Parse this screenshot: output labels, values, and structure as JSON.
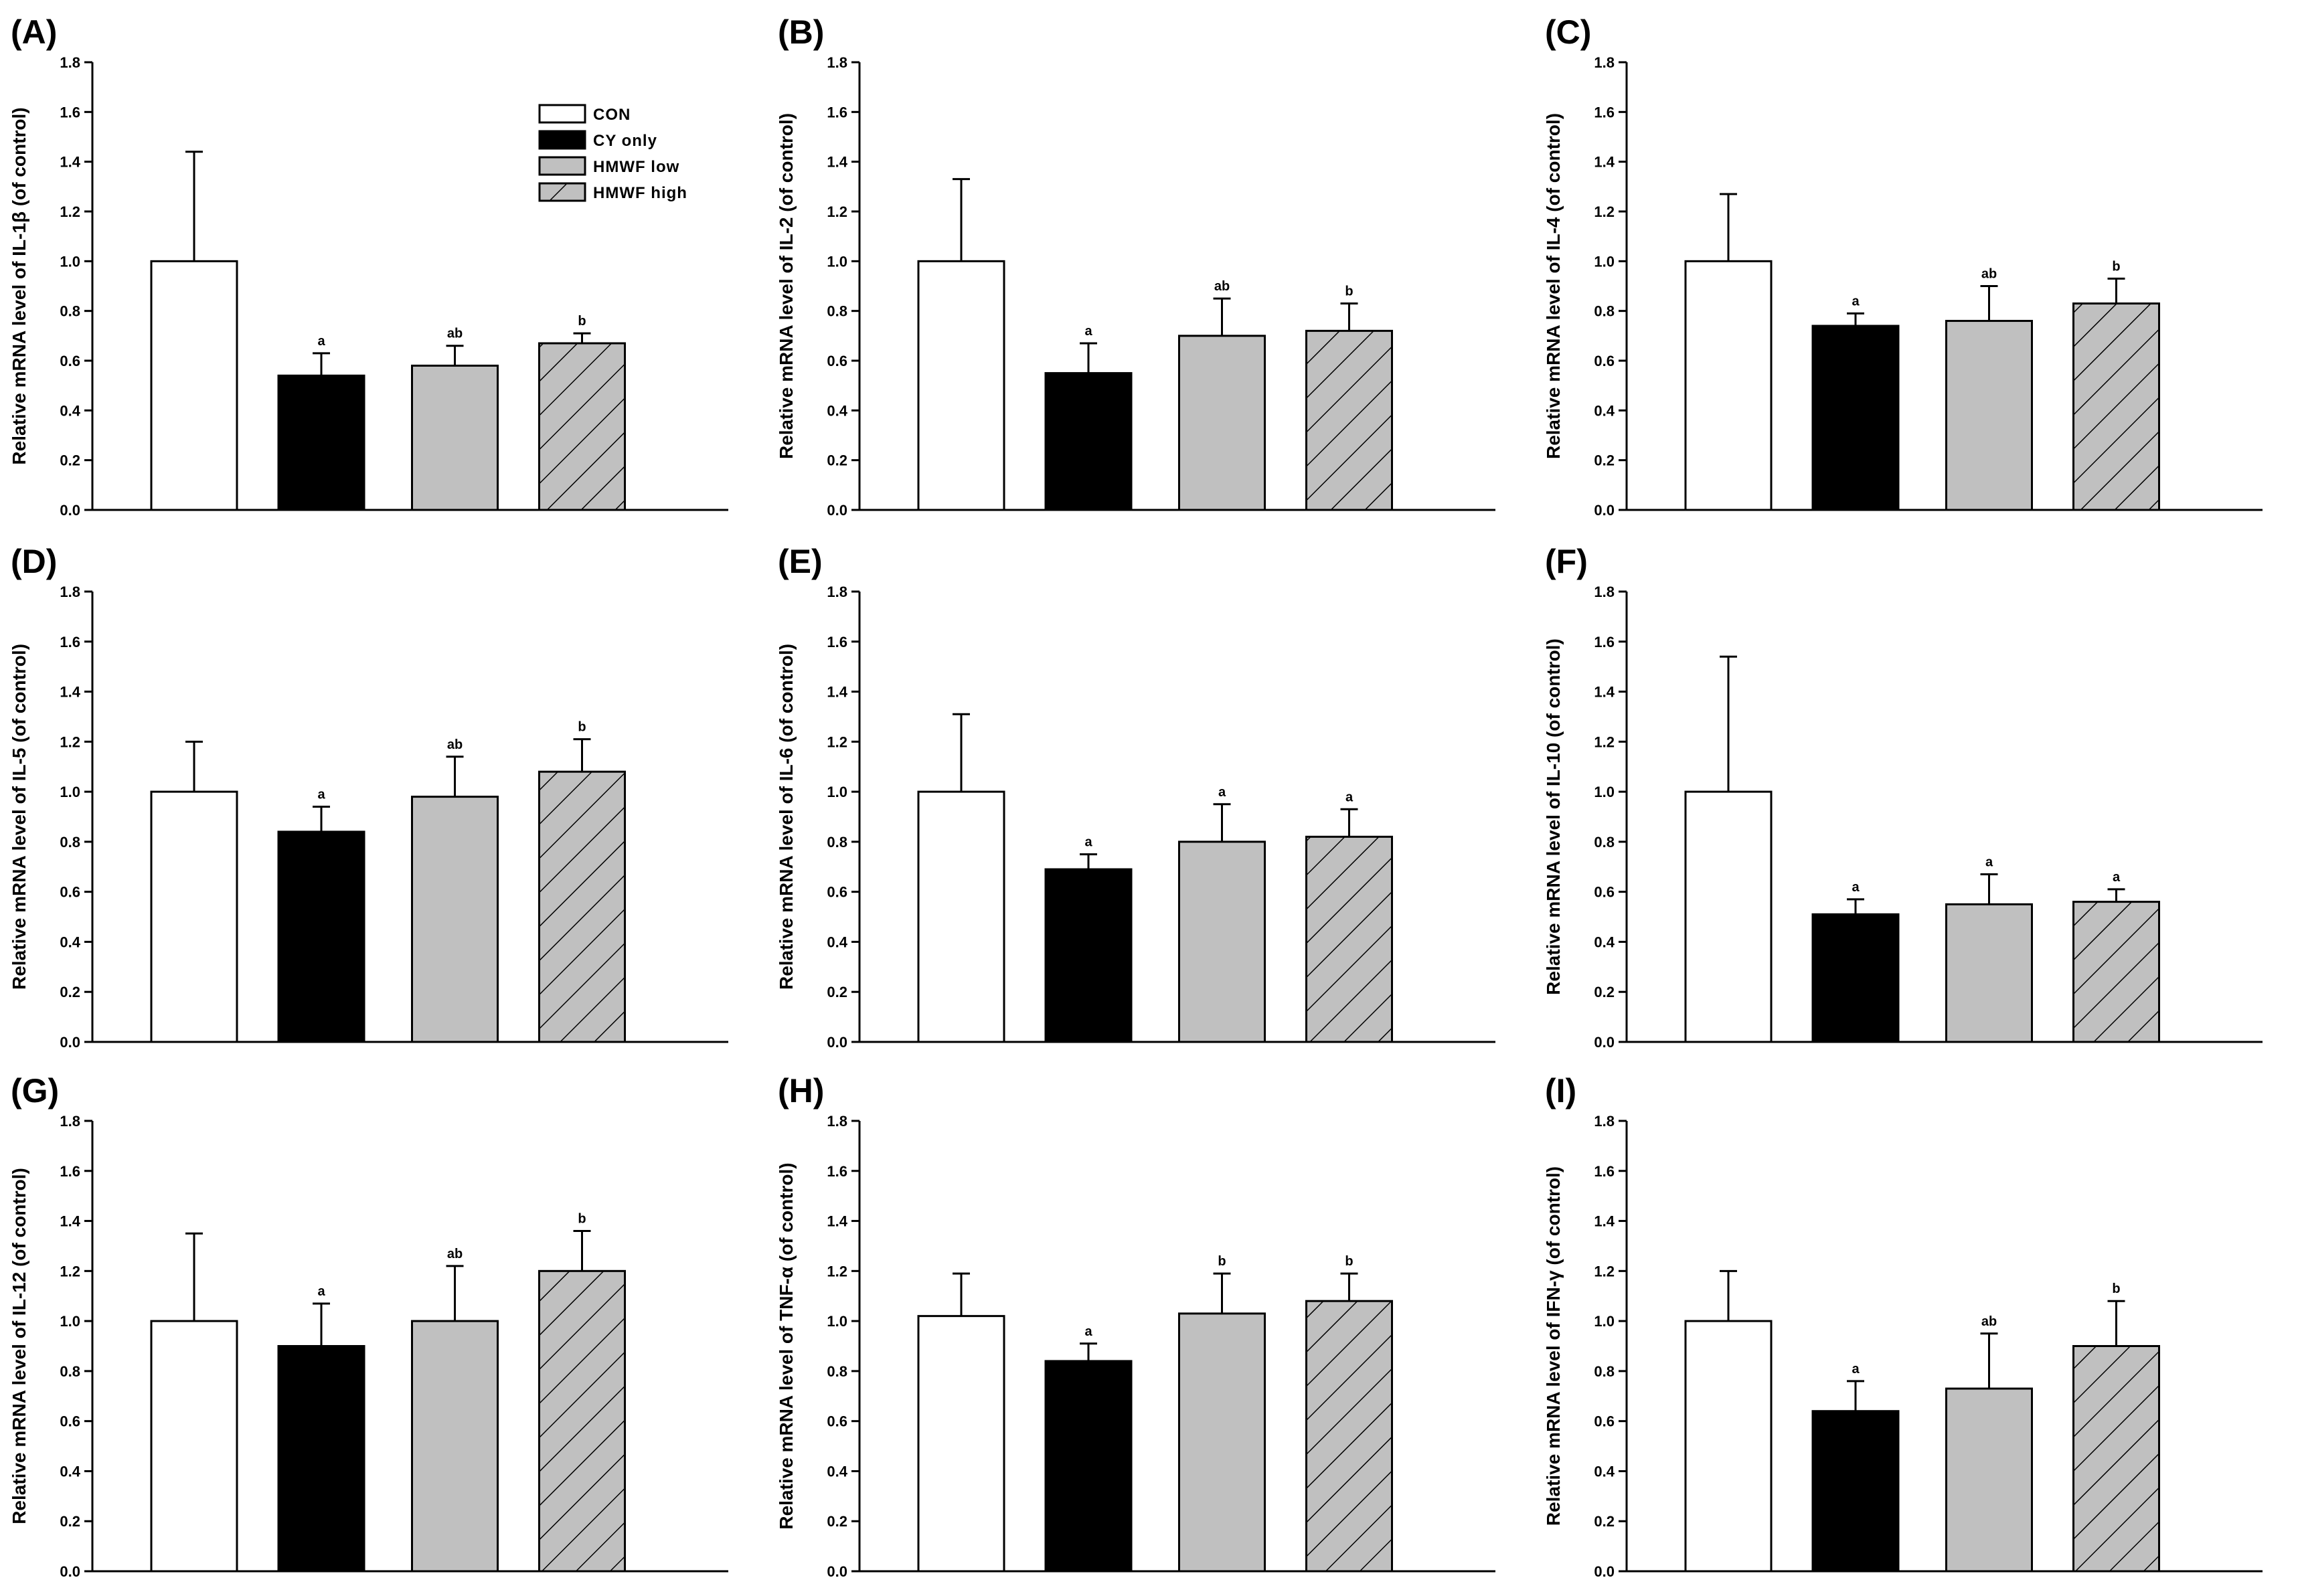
{
  "chart_data": [
    {
      "type": "bar",
      "panel": "(A)",
      "categories": [
        "CON",
        "CY only",
        "HMWF low",
        "HMWF high"
      ],
      "values": [
        1.0,
        0.54,
        0.58,
        0.67
      ],
      "errors": [
        0.44,
        0.09,
        0.08,
        0.04
      ],
      "sig_labels": [
        "",
        "a",
        "ab",
        "b"
      ],
      "ylabel": "Relative mRNA level of IL-1β (of control)",
      "ylim": [
        0,
        1.8
      ],
      "yticks": [
        "0.0",
        "0.2",
        "0.4",
        "0.6",
        "0.8",
        "1.0",
        "1.2",
        "1.4",
        "1.6",
        "1.8"
      ]
    },
    {
      "type": "bar",
      "panel": "(B)",
      "categories": [
        "CON",
        "CY only",
        "HMWF low",
        "HMWF high"
      ],
      "values": [
        1.0,
        0.55,
        0.7,
        0.72
      ],
      "errors": [
        0.33,
        0.12,
        0.15,
        0.11
      ],
      "sig_labels": [
        "",
        "a",
        "ab",
        "b"
      ],
      "ylabel": "Relative mRNA level of IL-2 (of control)",
      "ylim": [
        0,
        1.8
      ],
      "yticks": [
        "0.0",
        "0.2",
        "0.4",
        "0.6",
        "0.8",
        "1.0",
        "1.2",
        "1.4",
        "1.6",
        "1.8"
      ]
    },
    {
      "type": "bar",
      "panel": "(C)",
      "categories": [
        "CON",
        "CY only",
        "HMWF low",
        "HMWF high"
      ],
      "values": [
        1.0,
        0.74,
        0.76,
        0.83
      ],
      "errors": [
        0.27,
        0.05,
        0.14,
        0.1
      ],
      "sig_labels": [
        "",
        "a",
        "ab",
        "b"
      ],
      "ylabel": "Relative mRNA level of IL-4 (of control)",
      "ylim": [
        0,
        1.8
      ],
      "yticks": [
        "0.0",
        "0.2",
        "0.4",
        "0.6",
        "0.8",
        "1.0",
        "1.2",
        "1.4",
        "1.6",
        "1.8"
      ]
    },
    {
      "type": "bar",
      "panel": "(D)",
      "categories": [
        "CON",
        "CY only",
        "HMWF low",
        "HMWF high"
      ],
      "values": [
        1.0,
        0.84,
        0.98,
        1.08
      ],
      "errors": [
        0.2,
        0.1,
        0.16,
        0.13
      ],
      "sig_labels": [
        "",
        "a",
        "ab",
        "b"
      ],
      "ylabel": "Relative mRNA level of IL-5 (of control)",
      "ylim": [
        0,
        1.8
      ],
      "yticks": [
        "0.0",
        "0.2",
        "0.4",
        "0.6",
        "0.8",
        "1.0",
        "1.2",
        "1.4",
        "1.6",
        "1.8"
      ]
    },
    {
      "type": "bar",
      "panel": "(E)",
      "categories": [
        "CON",
        "CY only",
        "HMWF low",
        "HMWF high"
      ],
      "values": [
        1.0,
        0.69,
        0.8,
        0.82
      ],
      "errors": [
        0.31,
        0.06,
        0.15,
        0.11
      ],
      "sig_labels": [
        "",
        "a",
        "a",
        "a"
      ],
      "ylabel": "Relative mRNA level of IL-6 (of control)",
      "ylim": [
        0,
        1.8
      ],
      "yticks": [
        "0.0",
        "0.2",
        "0.4",
        "0.6",
        "0.8",
        "1.0",
        "1.2",
        "1.4",
        "1.6",
        "1.8"
      ]
    },
    {
      "type": "bar",
      "panel": "(F)",
      "categories": [
        "CON",
        "CY only",
        "HMWF low",
        "HMWF high"
      ],
      "values": [
        1.0,
        0.51,
        0.55,
        0.56
      ],
      "errors": [
        0.54,
        0.06,
        0.12,
        0.05
      ],
      "sig_labels": [
        "",
        "a",
        "a",
        "a"
      ],
      "ylabel": "Relative mRNA level of IL-10 (of control)",
      "ylim": [
        0,
        1.8
      ],
      "yticks": [
        "0.0",
        "0.2",
        "0.4",
        "0.6",
        "0.8",
        "1.0",
        "1.2",
        "1.4",
        "1.6",
        "1.8"
      ]
    },
    {
      "type": "bar",
      "panel": "(G)",
      "categories": [
        "CON",
        "CY only",
        "HMWF low",
        "HMWF high"
      ],
      "values": [
        1.0,
        0.9,
        1.0,
        1.2
      ],
      "errors": [
        0.35,
        0.17,
        0.22,
        0.16
      ],
      "sig_labels": [
        "",
        "a",
        "ab",
        "b"
      ],
      "ylabel": "Relative mRNA level of IL-12 (of control)",
      "ylim": [
        0,
        1.8
      ],
      "yticks": [
        "0.0",
        "0.2",
        "0.4",
        "0.6",
        "0.8",
        "1.0",
        "1.2",
        "1.4",
        "1.6",
        "1.8"
      ]
    },
    {
      "type": "bar",
      "panel": "(H)",
      "categories": [
        "CON",
        "CY only",
        "HMWF low",
        "HMWF high"
      ],
      "values": [
        1.02,
        0.84,
        1.03,
        1.08
      ],
      "errors": [
        0.17,
        0.07,
        0.16,
        0.11
      ],
      "sig_labels": [
        "",
        "a",
        "b",
        "b"
      ],
      "ylabel": "Relative mRNA level of TNF-α (of control)",
      "ylim": [
        0,
        1.8
      ],
      "yticks": [
        "0.0",
        "0.2",
        "0.4",
        "0.6",
        "0.8",
        "1.0",
        "1.2",
        "1.4",
        "1.6",
        "1.8"
      ]
    },
    {
      "type": "bar",
      "panel": "(I)",
      "categories": [
        "CON",
        "CY only",
        "HMWF low",
        "HMWF high"
      ],
      "values": [
        1.0,
        0.64,
        0.73,
        0.9
      ],
      "errors": [
        0.2,
        0.12,
        0.22,
        0.18
      ],
      "sig_labels": [
        "",
        "a",
        "ab",
        "b"
      ],
      "ylabel": "Relative mRNA level of IFN-γ (of control)",
      "ylim": [
        0,
        1.8
      ],
      "yticks": [
        "0.0",
        "0.2",
        "0.4",
        "0.6",
        "0.8",
        "1.0",
        "1.2",
        "1.4",
        "1.6",
        "1.8"
      ]
    }
  ],
  "legend": {
    "entries": [
      {
        "label": "CON",
        "style": "white"
      },
      {
        "label": "CY only",
        "style": "black"
      },
      {
        "label": "HMWF low",
        "style": "gray"
      },
      {
        "label": "HMWF high",
        "style": "hatched"
      }
    ]
  },
  "colors": {
    "con": "#ffffff",
    "cy_only": "#000000",
    "hmwf_low": "#c0c0c0",
    "hmwf_high": "#c0c0c0",
    "hatch": "#000000",
    "axis": "#000000"
  }
}
